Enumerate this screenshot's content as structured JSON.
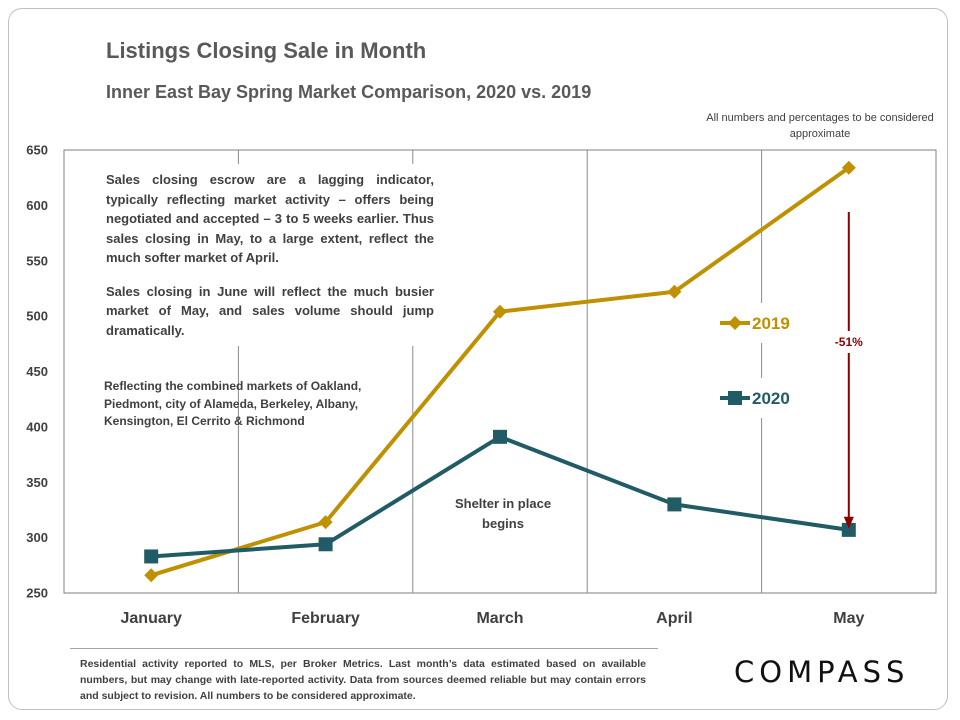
{
  "header": {
    "title": "Listings Closing Sale in Month",
    "subtitle": "Inner East Bay Spring Market Comparison,  2020 vs. 2019",
    "approx_note": "All numbers and percentages to be considered approximate"
  },
  "notes": {
    "paragraph1": "Sales closing escrow are a lagging indicator, typically reflecting market activity – offers being negotiated and accepted – 3 to 5 weeks earlier.  Thus sales closing in May, to a large extent, reflect the much softer market of April.",
    "paragraph2": "Sales closing in June will reflect the much busier market of May, and sales volume should jump dramatically.",
    "markets": "Reflecting the combined markets of Oakland, Piedmont, city of Alameda, Berkeley, Albany, Kensington, El Cerrito & Richmond",
    "shelter": "Shelter in place begins"
  },
  "chart_data": {
    "type": "line",
    "title": "Listings Closing Sale in Month",
    "subtitle": "Inner East Bay Spring Market Comparison,  2020 vs. 2019",
    "categories": [
      "January",
      "February",
      "March",
      "April",
      "May"
    ],
    "ylim": [
      250,
      650
    ],
    "yticks": [
      250,
      300,
      350,
      400,
      450,
      500,
      550,
      600,
      650
    ],
    "grid": "vertical",
    "legend_position": "right",
    "series": [
      {
        "name": "2019",
        "values": [
          266,
          314,
          504,
          522,
          634
        ],
        "color": "#BF9000",
        "marker": "diamond"
      },
      {
        "name": "2020",
        "values": [
          283,
          294,
          391,
          330,
          307
        ],
        "color": "#215B66",
        "marker": "square"
      }
    ],
    "annotation": {
      "label": "-51%",
      "category": "May",
      "from": 594,
      "to": 308,
      "color": "#8B0000"
    }
  },
  "footer": {
    "text": "Residential activity reported to MLS, per Broker Metrics. Last month’s data estimated based on available numbers, but may change with late-reported activity. Data from sources deemed reliable but may contain errors and subject to revision. All numbers to be considered approximate."
  },
  "logo": {
    "text": "COMPASS"
  }
}
